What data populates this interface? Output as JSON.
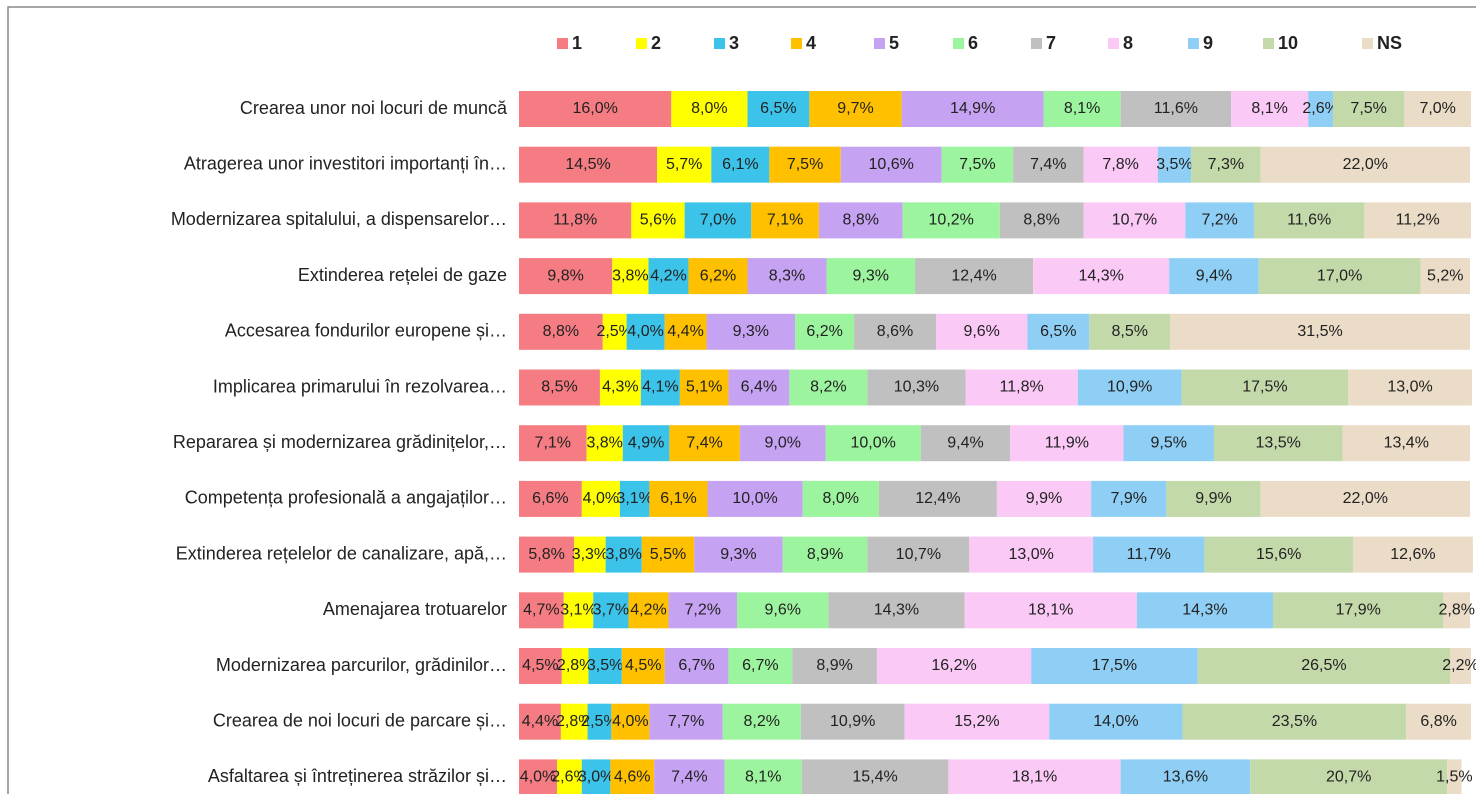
{
  "chart_data": {
    "type": "bar",
    "orientation": "horizontal",
    "stacked": true,
    "legend": "top",
    "xlim": [
      0,
      100
    ],
    "categories": [
      "Crearea unor noi locuri de muncă",
      "Atragerea unor investitori importanți în…",
      "Modernizarea spitalului, a dispensarelor…",
      "Extinderea rețelei de gaze",
      "Accesarea fondurilor europene și…",
      "Implicarea primarului în rezolvarea…",
      "Repararea și modernizarea grădinițelor,…",
      "Competența profesională a angajaților…",
      "Extinderea rețelelor de canalizare, apă,…",
      "Amenajarea trotuarelor",
      "Modernizarea parcurilor, grădinilor…",
      "Crearea de noi locuri de parcare și…",
      "Asfaltarea și întreținerea străzilor și…"
    ],
    "series": [
      {
        "name": "1",
        "color": "#f47c82",
        "values": [
          16.0,
          14.5,
          11.8,
          9.8,
          8.8,
          8.5,
          7.1,
          6.6,
          5.8,
          4.7,
          4.5,
          4.4,
          4.0
        ],
        "value_labels": [
          "16,0%",
          "14,5%",
          "11,8%",
          "9,8%",
          "8,8%",
          "8,5%",
          "7,1%",
          "6,6%",
          "5,8%",
          "4,7%",
          "4,5%",
          "4,4%",
          "4,0%"
        ]
      },
      {
        "name": "2",
        "color": "#ffff00",
        "values": [
          8.0,
          5.7,
          5.6,
          3.8,
          2.5,
          4.3,
          3.8,
          4.0,
          3.3,
          3.1,
          2.8,
          2.8,
          2.6
        ],
        "value_labels": [
          "8,0%",
          "5,7%",
          "5,6%",
          "3,8%",
          "2,5%",
          "4,3%",
          "3,8%",
          "4,0%",
          "3,3%",
          "3,1%",
          "2,8%",
          "2,8%",
          "2,6%"
        ]
      },
      {
        "name": "3",
        "color": "#3cc3ea",
        "values": [
          6.5,
          6.1,
          7.0,
          4.2,
          4.0,
          4.1,
          4.9,
          3.1,
          3.8,
          3.7,
          3.5,
          2.5,
          3.0
        ],
        "value_labels": [
          "6,5%",
          "6,1%",
          "7,0%",
          "4,2%",
          "4,0%",
          "4,1%",
          "4,9%",
          "3,1%",
          "3,8%",
          "3,7%",
          "3,5%",
          "2,5%",
          "3,0%"
        ]
      },
      {
        "name": "4",
        "color": "#ffc000",
        "values": [
          9.7,
          7.5,
          7.1,
          6.2,
          4.4,
          5.1,
          7.4,
          6.1,
          5.5,
          4.2,
          4.5,
          4.0,
          4.6
        ],
        "value_labels": [
          "9,7%",
          "7,5%",
          "7,1%",
          "6,2%",
          "4,4%",
          "5,1%",
          "7,4%",
          "6,1%",
          "5,5%",
          "4,2%",
          "4,5%",
          "4,0%",
          "4,6%"
        ]
      },
      {
        "name": "5",
        "color": "#c6a2f2",
        "values": [
          14.9,
          10.6,
          8.8,
          8.3,
          9.3,
          6.4,
          9.0,
          10.0,
          9.3,
          7.2,
          6.7,
          7.7,
          7.4
        ],
        "value_labels": [
          "14,9%",
          "10,6%",
          "8,8%",
          "8,3%",
          "9,3%",
          "6,4%",
          "9,0%",
          "10,0%",
          "9,3%",
          "7,2%",
          "6,7%",
          "7,7%",
          "7,4%"
        ]
      },
      {
        "name": "6",
        "color": "#9cf59e",
        "values": [
          8.1,
          7.5,
          10.2,
          9.3,
          6.2,
          8.2,
          10.0,
          8.0,
          8.9,
          9.6,
          6.7,
          8.2,
          8.1
        ],
        "value_labels": [
          "8,1%",
          "7,5%",
          "10,2%",
          "9,3%",
          "6,2%",
          "8,2%",
          "10,0%",
          "8,0%",
          "8,9%",
          "9,6%",
          "6,7%",
          "8,2%",
          "8,1%"
        ]
      },
      {
        "name": "7",
        "color": "#c0c0c0",
        "values": [
          11.6,
          7.4,
          8.8,
          12.4,
          8.6,
          10.3,
          9.4,
          12.4,
          10.7,
          14.3,
          8.9,
          10.9,
          15.4
        ],
        "value_labels": [
          "11,6%",
          "7,4%",
          "8,8%",
          "12,4%",
          "8,6%",
          "10,3%",
          "9,4%",
          "12,4%",
          "10,7%",
          "14,3%",
          "8,9%",
          "10,9%",
          "15,4%"
        ]
      },
      {
        "name": "8",
        "color": "#fbc9f6",
        "values": [
          8.1,
          7.8,
          10.7,
          14.3,
          9.6,
          11.8,
          11.9,
          9.9,
          13.0,
          18.1,
          16.2,
          15.2,
          18.1
        ],
        "value_labels": [
          "8,1%",
          "7,8%",
          "10,7%",
          "14,3%",
          "9,6%",
          "11,8%",
          "11,9%",
          "9,9%",
          "13,0%",
          "18,1%",
          "16,2%",
          "15,2%",
          "18,1%"
        ]
      },
      {
        "name": "9",
        "color": "#8fcff5",
        "values": [
          2.6,
          3.5,
          7.2,
          9.4,
          6.5,
          10.9,
          9.5,
          7.9,
          11.7,
          14.3,
          17.5,
          14.0,
          13.6
        ],
        "value_labels": [
          "2,6%",
          "3,5%",
          "7,2%",
          "9,4%",
          "6,5%",
          "10,9%",
          "9,5%",
          "7,9%",
          "11,7%",
          "14,3%",
          "17,5%",
          "14,0%",
          "13,6%"
        ]
      },
      {
        "name": "10",
        "color": "#c4d9aa",
        "values": [
          7.5,
          7.3,
          11.6,
          17.0,
          8.5,
          17.5,
          13.5,
          9.9,
          15.6,
          17.9,
          26.5,
          23.5,
          20.7
        ],
        "value_labels": [
          "7,5%",
          "7,3%",
          "11,6%",
          "17,0%",
          "8,5%",
          "17,5%",
          "13,5%",
          "9,9%",
          "15,6%",
          "17,9%",
          "26,5%",
          "23,5%",
          "20,7%"
        ]
      },
      {
        "name": "NS",
        "color": "#eadcc6",
        "values": [
          7.0,
          22.0,
          11.2,
          5.2,
          31.5,
          13.0,
          13.4,
          22.0,
          12.6,
          2.8,
          2.2,
          6.8,
          1.5
        ],
        "value_labels": [
          "7,0%",
          "22,0%",
          "11,2%",
          "5,2%",
          "31,5%",
          "13,0%",
          "13,4%",
          "22,0%",
          "12,6%",
          "2,8%",
          "2,2%",
          "6,8%",
          "1,5%"
        ]
      }
    ]
  }
}
